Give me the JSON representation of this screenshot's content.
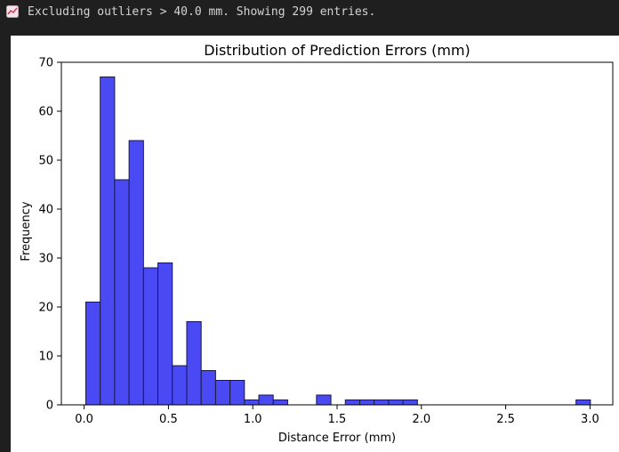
{
  "console": {
    "message": "Excluding outliers > 40.0 mm. Showing 299 entries.",
    "icon": "chart-emoji-icon"
  },
  "chart_data": {
    "type": "bar",
    "title": "Distribution of Prediction Errors (mm)",
    "xlabel": "Distance Error (mm)",
    "ylabel": "Frequency",
    "xlim": [
      -0.135,
      3.135
    ],
    "ylim": [
      0,
      70
    ],
    "xticks": [
      0.0,
      0.5,
      1.0,
      1.5,
      2.0,
      2.5,
      3.0
    ],
    "xtick_labels": [
      "0.0",
      "0.5",
      "1.0",
      "1.5",
      "2.0",
      "2.5",
      "3.0"
    ],
    "yticks": [
      0,
      10,
      20,
      30,
      40,
      50,
      60,
      70
    ],
    "ytick_labels": [
      "0",
      "10",
      "20",
      "30",
      "40",
      "50",
      "60",
      "70"
    ],
    "bin_start": 0.01,
    "bin_width": 0.0855,
    "values": [
      21,
      67,
      46,
      54,
      28,
      29,
      8,
      17,
      7,
      5,
      5,
      1,
      2,
      1,
      0,
      0,
      2,
      0,
      1,
      1,
      1,
      1,
      1,
      0,
      0,
      0,
      0,
      0,
      0,
      0,
      0,
      0,
      0,
      0,
      1
    ],
    "bar_color": "#4a4af5",
    "edge_color": "#1a1a40",
    "grid": false,
    "legend": "none"
  }
}
